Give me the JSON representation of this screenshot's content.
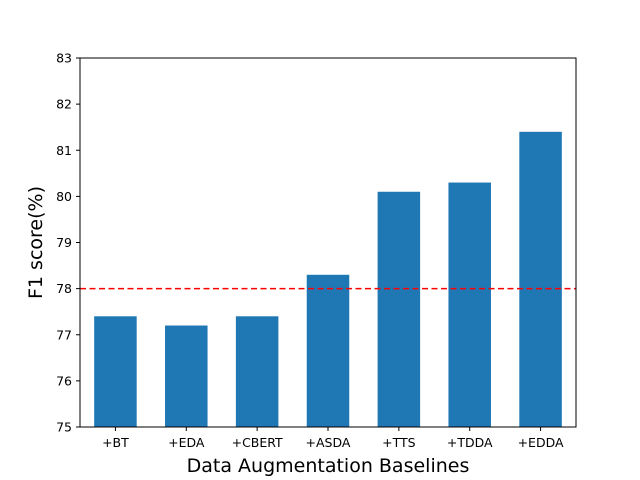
{
  "chart_data": {
    "type": "bar",
    "categories": [
      "+BT",
      "+EDA",
      "+CBERT",
      "+ASDA",
      "+TTS",
      "+TDDA",
      "+EDDA"
    ],
    "values": [
      77.4,
      77.2,
      77.4,
      78.3,
      80.1,
      80.3,
      81.4
    ],
    "title": "",
    "xlabel": "Data Augmentation Baselines",
    "ylabel": "F1 score(%)",
    "ylim": [
      75,
      83
    ],
    "yticks": [
      75,
      76,
      77,
      78,
      79,
      80,
      81,
      82,
      83
    ],
    "grid": false,
    "reference_line": {
      "y": 78,
      "style": "dashed",
      "color": "#ff0000"
    },
    "bar_color": "#1f77b4"
  }
}
